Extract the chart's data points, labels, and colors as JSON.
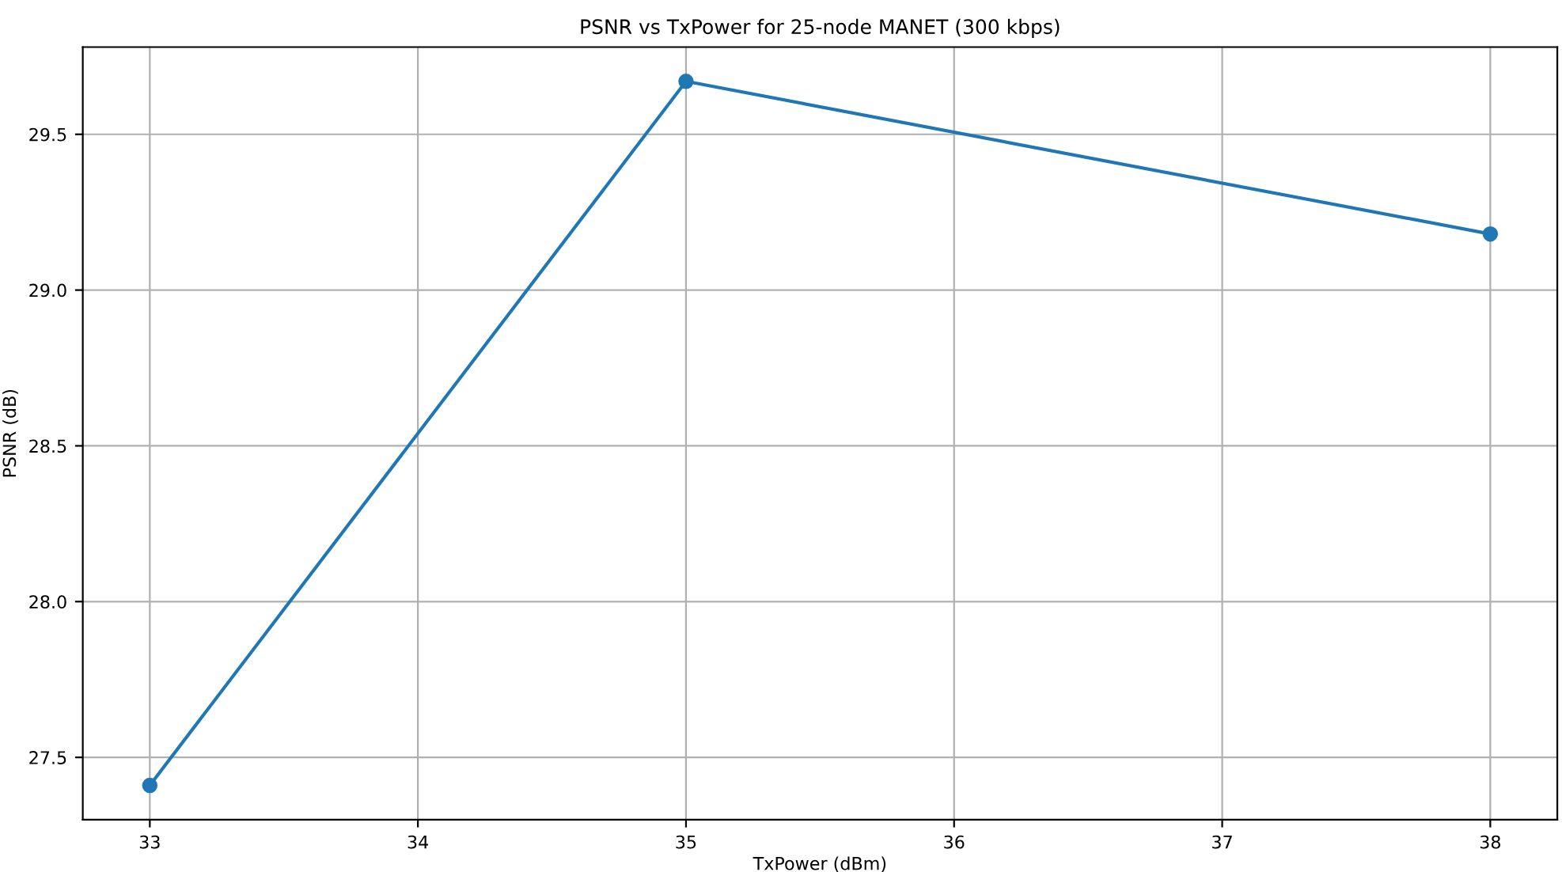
{
  "chart_data": {
    "type": "line",
    "title": "PSNR vs TxPower for 25-node MANET (300 kbps)",
    "xlabel": "TxPower (dBm)",
    "ylabel": "PSNR (dB)",
    "x": [
      33,
      35,
      38
    ],
    "series": [
      {
        "color": "#1f77b4",
        "values": [
          27.41,
          29.67,
          29.18
        ]
      }
    ],
    "xlim": [
      32.75,
      38.25
    ],
    "xticks": [
      33,
      34,
      35,
      36,
      37,
      38
    ],
    "ylim": [
      27.3,
      29.78
    ],
    "yticks": [
      27.5,
      {
        "value": 28,
        "label": "28.0"
      },
      28.5,
      {
        "value": 29,
        "label": "29.0"
      },
      29.5
    ],
    "grid": true,
    "marker": "circle",
    "line_style": "solid"
  }
}
